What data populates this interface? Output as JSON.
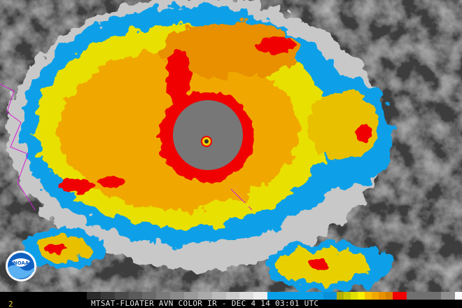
{
  "image": {
    "caption": "MTSAT-FLOATER AVN COLOR IR - DEC 4 14 03:01 UTC",
    "frame_number": "2",
    "logo_text": "NOAA",
    "color_scale": [
      {
        "color": "#2a2a2a",
        "weight": 2
      },
      {
        "color": "#3a3a3a",
        "weight": 2
      },
      {
        "color": "#4a4a4a",
        "weight": 2
      },
      {
        "color": "#5a5a5a",
        "weight": 2
      },
      {
        "color": "#6a6a6a",
        "weight": 2
      },
      {
        "color": "#7a7a7a",
        "weight": 2
      },
      {
        "color": "#8a8a8a",
        "weight": 2
      },
      {
        "color": "#9a9a9a",
        "weight": 2
      },
      {
        "color": "#aaaaaa",
        "weight": 2
      },
      {
        "color": "#bbbbbb",
        "weight": 2
      },
      {
        "color": "#cccccc",
        "weight": 2
      },
      {
        "color": "#dddddd",
        "weight": 2
      },
      {
        "color": "#eeeeee",
        "weight": 2
      },
      {
        "color": "#0aa0e8",
        "weight": 8
      },
      {
        "color": "#0890d8",
        "weight": 2
      },
      {
        "color": "#b0b000",
        "weight": 1
      },
      {
        "color": "#c8c800",
        "weight": 1
      },
      {
        "color": "#e0e000",
        "weight": 1
      },
      {
        "color": "#f8f000",
        "weight": 1
      },
      {
        "color": "#f8c000",
        "weight": 1
      },
      {
        "color": "#f0a800",
        "weight": 1
      },
      {
        "color": "#e89000",
        "weight": 1
      },
      {
        "color": "#d88000",
        "weight": 1
      },
      {
        "color": "#f00000",
        "weight": 2
      },
      {
        "color": "#707070",
        "weight": 5
      },
      {
        "color": "#909090",
        "weight": 2
      },
      {
        "color": "#fafafa",
        "weight": 1
      }
    ]
  }
}
